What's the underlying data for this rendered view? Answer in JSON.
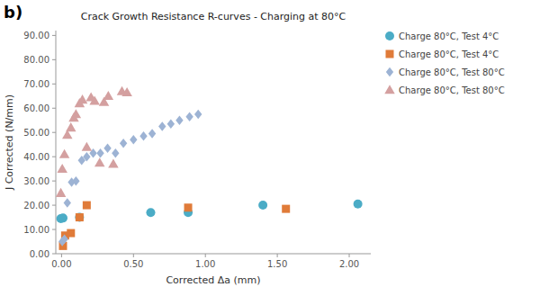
{
  "chart_data": {
    "type": "scatter",
    "title": "Crack Growth Resistance R-curves - Charging at 80°C",
    "xlabel": "Corrected Δa (mm)",
    "ylabel": "J Corrected  (N/mm)",
    "annotations": [
      "b)"
    ],
    "xlim": [
      -0.04,
      2.15
    ],
    "ylim": [
      0.0,
      92
    ],
    "xticks": [
      {
        "value": 0.0,
        "label": "0.00"
      },
      {
        "value": 0.5,
        "label": "0.50"
      },
      {
        "value": 1.0,
        "label": "1.00"
      },
      {
        "value": 1.5,
        "label": "1.50"
      },
      {
        "value": 2.0,
        "label": "2.00"
      }
    ],
    "yticks": [
      {
        "value": 0.0,
        "label": "0.00"
      },
      {
        "value": 10.0,
        "label": "10.00"
      },
      {
        "value": 20.0,
        "label": "20.00"
      },
      {
        "value": 30.0,
        "label": "30.00"
      },
      {
        "value": 40.0,
        "label": "40.00"
      },
      {
        "value": 50.0,
        "label": "50.00"
      },
      {
        "value": 60.0,
        "label": "60.00"
      },
      {
        "value": 70.0,
        "label": "70.00"
      },
      {
        "value": 80.0,
        "label": "80.00"
      },
      {
        "value": 90.0,
        "label": "90.00"
      }
    ],
    "grid": false,
    "legend": "right",
    "series": [
      {
        "name": "Charge 80°C, Test 4°C",
        "marker": "circle",
        "color": "#4bacc6",
        "x": [
          -0.005,
          0.01,
          0.125,
          0.62,
          0.88,
          1.4,
          2.06
        ],
        "values": [
          14.5,
          14.7,
          15.0,
          17.0,
          17.0,
          20.0,
          20.5
        ]
      },
      {
        "name": "Charge 80°C, Test 4°C",
        "marker": "square",
        "color": "#e07b39",
        "x": [
          0.01,
          0.025,
          0.065,
          0.125,
          0.175,
          0.88,
          1.56
        ],
        "values": [
          3.2,
          7.5,
          8.5,
          15.0,
          20.0,
          19.0,
          18.5
        ]
      },
      {
        "name": "Charge 80°C, Test 80°C",
        "marker": "diamond",
        "color": "#9db3d4",
        "x": [
          0.005,
          0.02,
          0.04,
          0.07,
          0.1,
          0.14,
          0.175,
          0.22,
          0.27,
          0.32,
          0.375,
          0.43,
          0.5,
          0.57,
          0.63,
          0.7,
          0.76,
          0.82,
          0.89,
          0.95
        ],
        "values": [
          5.0,
          6.0,
          21.0,
          29.5,
          30.0,
          38.5,
          40.0,
          41.5,
          41.5,
          43.5,
          41.5,
          45.5,
          47.0,
          48.5,
          49.5,
          52.5,
          53.5,
          55.0,
          56.5,
          57.5
        ]
      },
      {
        "name": "Charge 80°C, Test 80°C",
        "marker": "triangle",
        "color": "#d4a0a0",
        "x": [
          -0.005,
          0.005,
          0.02,
          0.04,
          0.065,
          0.085,
          0.1,
          0.125,
          0.145,
          0.175,
          0.205,
          0.23,
          0.265,
          0.295,
          0.325,
          0.36,
          0.42,
          0.455
        ],
        "values": [
          25.0,
          35.0,
          41.0,
          49.0,
          52.0,
          56.0,
          57.5,
          62.0,
          63.5,
          44.0,
          64.5,
          63.0,
          37.5,
          62.5,
          65.0,
          37.0,
          67.0,
          66.5
        ]
      }
    ]
  }
}
